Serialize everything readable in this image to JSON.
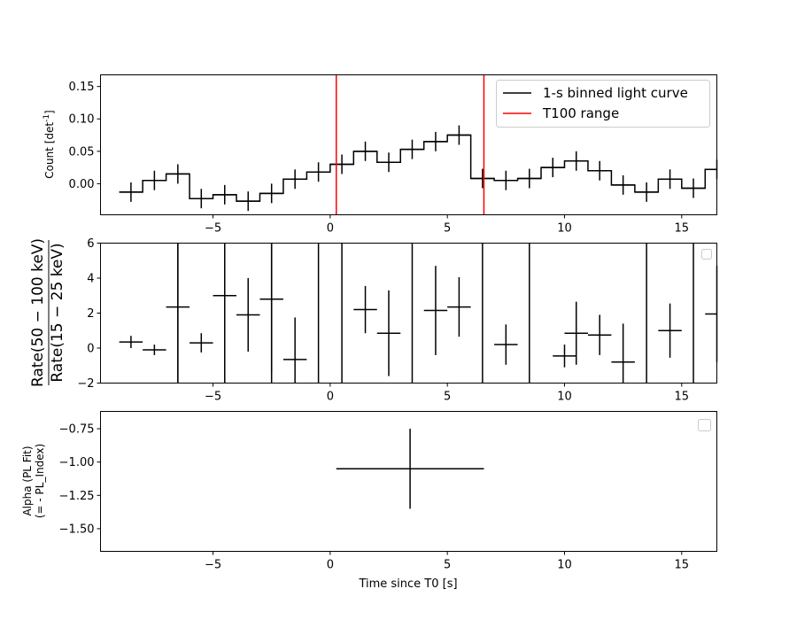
{
  "chart_data": [
    {
      "type": "line",
      "panel": "light-curve",
      "ylabel": "Count [det",
      "ylabel_sup": "-1",
      "ylabel_end": "]",
      "xlim": [
        -9.8,
        16.5
      ],
      "ylim": [
        -0.048,
        0.168
      ],
      "xticks": [
        -5,
        0,
        5,
        10,
        15
      ],
      "xtick_labels": [
        "−5",
        "0",
        "5",
        "10",
        "15"
      ],
      "yticks": [
        0.0,
        0.05,
        0.1,
        0.15
      ],
      "ytick_labels": [
        "0.00",
        "0.05",
        "0.10",
        "0.15"
      ],
      "legend": {
        "placement": "top-right",
        "entries": [
          {
            "label": "1-s binned light curve",
            "color": "#000000"
          },
          {
            "label": "T100 range",
            "color": "#ff0000"
          }
        ]
      },
      "t100_range": [
        0.26,
        6.56
      ],
      "series": [
        {
          "name": "1-s binned light curve",
          "color": "#000000",
          "x": [
            -8.5,
            -7.5,
            -6.5,
            -5.5,
            -4.5,
            -3.5,
            -2.5,
            -1.5,
            -0.5,
            0.5,
            1.5,
            2.5,
            3.5,
            4.5,
            5.5,
            6.5,
            7.5,
            8.5,
            9.5,
            10.5,
            11.5,
            12.5,
            13.5,
            14.5,
            15.5,
            16.5
          ],
          "y": [
            -0.013,
            0.005,
            0.015,
            -0.023,
            -0.017,
            -0.027,
            -0.015,
            0.007,
            0.018,
            0.03,
            0.05,
            0.033,
            0.053,
            0.065,
            0.075,
            0.008,
            0.005,
            0.008,
            0.025,
            0.035,
            0.02,
            -0.002,
            -0.013,
            0.007,
            -0.007,
            0.022
          ],
          "yerr": [
            0.015,
            0.015,
            0.015,
            0.015,
            0.015,
            0.015,
            0.015,
            0.015,
            0.015,
            0.015,
            0.015,
            0.015,
            0.015,
            0.015,
            0.015,
            0.015,
            0.015,
            0.015,
            0.015,
            0.015,
            0.015,
            0.015,
            0.015,
            0.015,
            0.015,
            0.015
          ]
        }
      ]
    },
    {
      "type": "scatter",
      "panel": "hardness-ratio",
      "ylabel_num": "Rate(50 − 100 keV)",
      "ylabel_den": "Rate(15 − 25 keV)",
      "xlim": [
        -9.8,
        16.5
      ],
      "ylim": [
        -2,
        6
      ],
      "xticks": [
        -5,
        0,
        5,
        10,
        15
      ],
      "xtick_labels": [
        "−5",
        "0",
        "5",
        "10",
        "15"
      ],
      "yticks": [
        -2,
        0,
        2,
        4,
        6
      ],
      "ytick_labels": [
        "−2",
        "0",
        "2",
        "4",
        "6"
      ],
      "legend": {
        "placement": "top-right",
        "entries": []
      },
      "series": [
        {
          "color": "#000000",
          "x": [
            -8.5,
            -7.5,
            -6.5,
            -5.5,
            -4.5,
            -3.5,
            -2.5,
            -1.5,
            1.5,
            2.5,
            4.5,
            5.5,
            7.5,
            10.0,
            10.5,
            11.5,
            12.5,
            14.5,
            16.5
          ],
          "y": [
            0.35,
            -0.1,
            2.35,
            0.3,
            3.0,
            1.9,
            2.8,
            -0.65,
            2.2,
            0.85,
            2.15,
            2.35,
            0.2,
            -0.45,
            0.85,
            0.75,
            -0.8,
            1.0,
            1.95
          ],
          "yerr": [
            0.35,
            0.3,
            4.5,
            0.55,
            5.0,
            2.1,
            4.2,
            2.4,
            1.35,
            2.45,
            2.55,
            1.7,
            1.15,
            0.65,
            1.8,
            1.15,
            2.2,
            1.55,
            2.75
          ]
        }
      ],
      "vertical_lines_x": [
        -6.5,
        -4.5,
        -2.5,
        -0.5,
        0.5,
        3.5,
        6.5,
        8.5,
        13.5,
        15.5
      ]
    },
    {
      "type": "scatter",
      "panel": "pl-index",
      "ylabel_line1": "Alpha (PL Fit)",
      "ylabel_line2": "(= - PL_Index)",
      "xlabel": "Time since T0 [s]",
      "xlim": [
        -9.8,
        16.5
      ],
      "ylim": [
        -1.67,
        -0.62
      ],
      "xticks": [
        -5,
        0,
        5,
        10,
        15
      ],
      "xtick_labels": [
        "−5",
        "0",
        "5",
        "10",
        "15"
      ],
      "yticks": [
        -1.5,
        -1.25,
        -1.0,
        -0.75
      ],
      "ytick_labels": [
        "−1.50",
        "−1.25",
        "−1.00",
        "−0.75"
      ],
      "legend": {
        "placement": "top-right",
        "entries": []
      },
      "series": [
        {
          "color": "#000000",
          "x": [
            3.41
          ],
          "y": [
            -1.05
          ],
          "xerr_low": [
            3.15
          ],
          "xerr_high": [
            3.15
          ],
          "yerr": [
            0.3
          ]
        }
      ]
    }
  ]
}
